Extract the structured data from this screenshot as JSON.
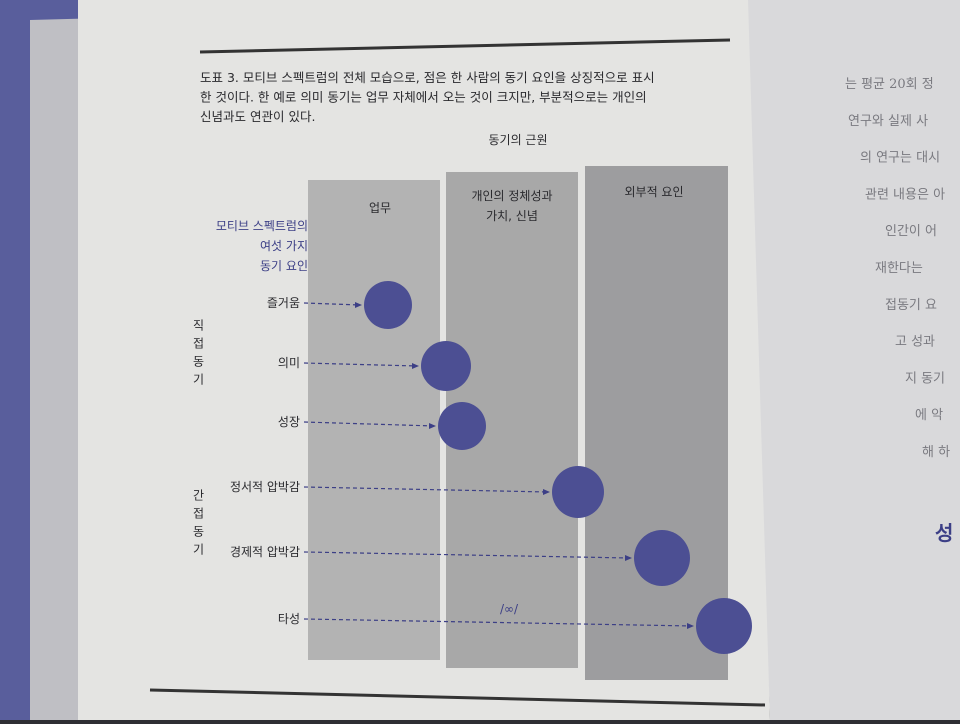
{
  "caption": {
    "lines": [
      "도표 3. 모티브 스펙트럼의 전체 모습으로, 점은 한 사람의 동기 요인을 상징적으로 표시",
      "한 것이다. 한 예로 의미 동기는 업무 자체에서 오는 것이 크지만, 부분적으로는 개인의",
      "신념과도 연관이 있다."
    ]
  },
  "diagram": {
    "title": "동기의 근원",
    "columns": [
      {
        "lines": [
          "업무"
        ]
      },
      {
        "lines": [
          "개인의 정체성과",
          "가치, 신념"
        ]
      },
      {
        "lines": [
          "외부적 요인"
        ]
      }
    ],
    "legend_heading": [
      "모티브 스펙트럼의",
      "여섯 가지",
      "동기 요인"
    ],
    "groups": [
      "직접동기",
      "간접동기"
    ],
    "rows": [
      "즐거움",
      "의미",
      "성장",
      "정서적 압박감",
      "경제적 압박감",
      "타성"
    ],
    "break_symbol": "/∞/"
  },
  "right_page": {
    "lines": [
      "는 평균 20회 정",
      "연구와 실제 사",
      "의 연구는 대시",
      "관련 내용은 아",
      "인간이 어",
      "재한다는",
      "접동기 요",
      "고 성과",
      "지 동기",
      "에 악",
      "해 하"
    ],
    "heading": "성"
  }
}
